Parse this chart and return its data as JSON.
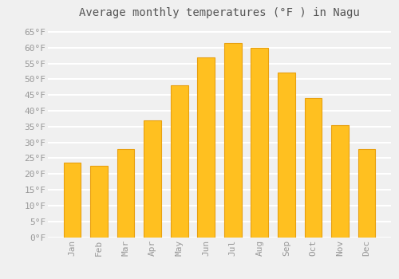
{
  "title": "Average monthly temperatures (°F ) in Nagu",
  "months": [
    "Jan",
    "Feb",
    "Mar",
    "Apr",
    "May",
    "Jun",
    "Jul",
    "Aug",
    "Sep",
    "Oct",
    "Nov",
    "Dec"
  ],
  "values": [
    23.5,
    22.5,
    28,
    37,
    48,
    57,
    61.5,
    60,
    52,
    44,
    35.5,
    28
  ],
  "bar_color": "#FFC020",
  "bar_edge_color": "#E8A010",
  "background_color": "#f0f0f0",
  "grid_color": "#ffffff",
  "yticks": [
    0,
    5,
    10,
    15,
    20,
    25,
    30,
    35,
    40,
    45,
    50,
    55,
    60,
    65
  ],
  "ylim": [
    0,
    68
  ],
  "title_fontsize": 10,
  "tick_fontsize": 8,
  "tick_label_color": "#999999",
  "title_color": "#555555"
}
